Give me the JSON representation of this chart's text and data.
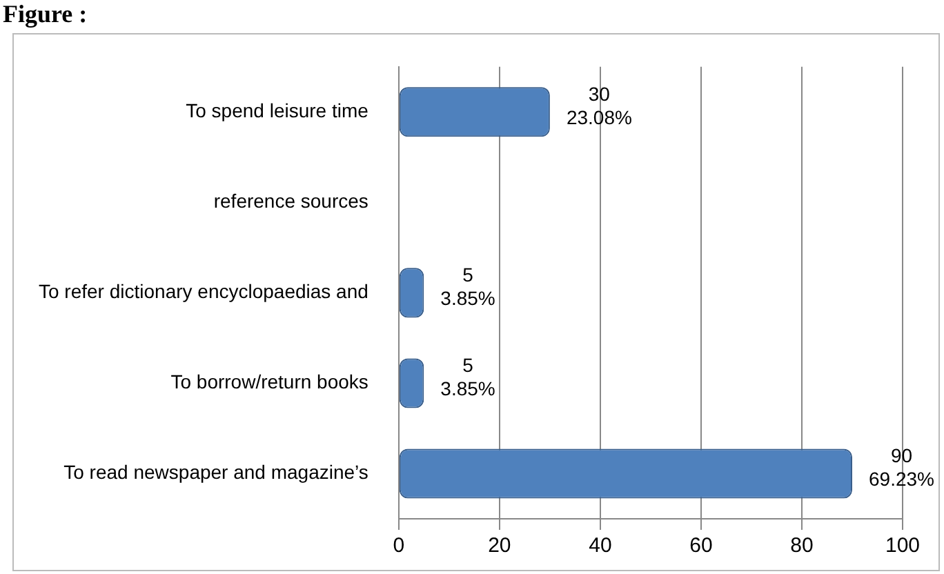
{
  "chart_data": {
    "type": "bar",
    "orientation": "horizontal",
    "title": "Figure :",
    "categories": [
      "To spend leisure time",
      "reference sources",
      "To refer dictionary encyclopaedias and",
      "To borrow/return books",
      "To read newspaper and magazine’s"
    ],
    "values": [
      30,
      null,
      5,
      5,
      90
    ],
    "value_labels": [
      "30\n23.08%",
      null,
      "5\n3.85%",
      "5\n3.85%",
      "90\n69.23%"
    ],
    "color": "#4f81bd",
    "xlim": [
      0,
      100
    ],
    "xticks": [
      0,
      20,
      40,
      60,
      80,
      100
    ],
    "grid": "x",
    "legend": false
  }
}
